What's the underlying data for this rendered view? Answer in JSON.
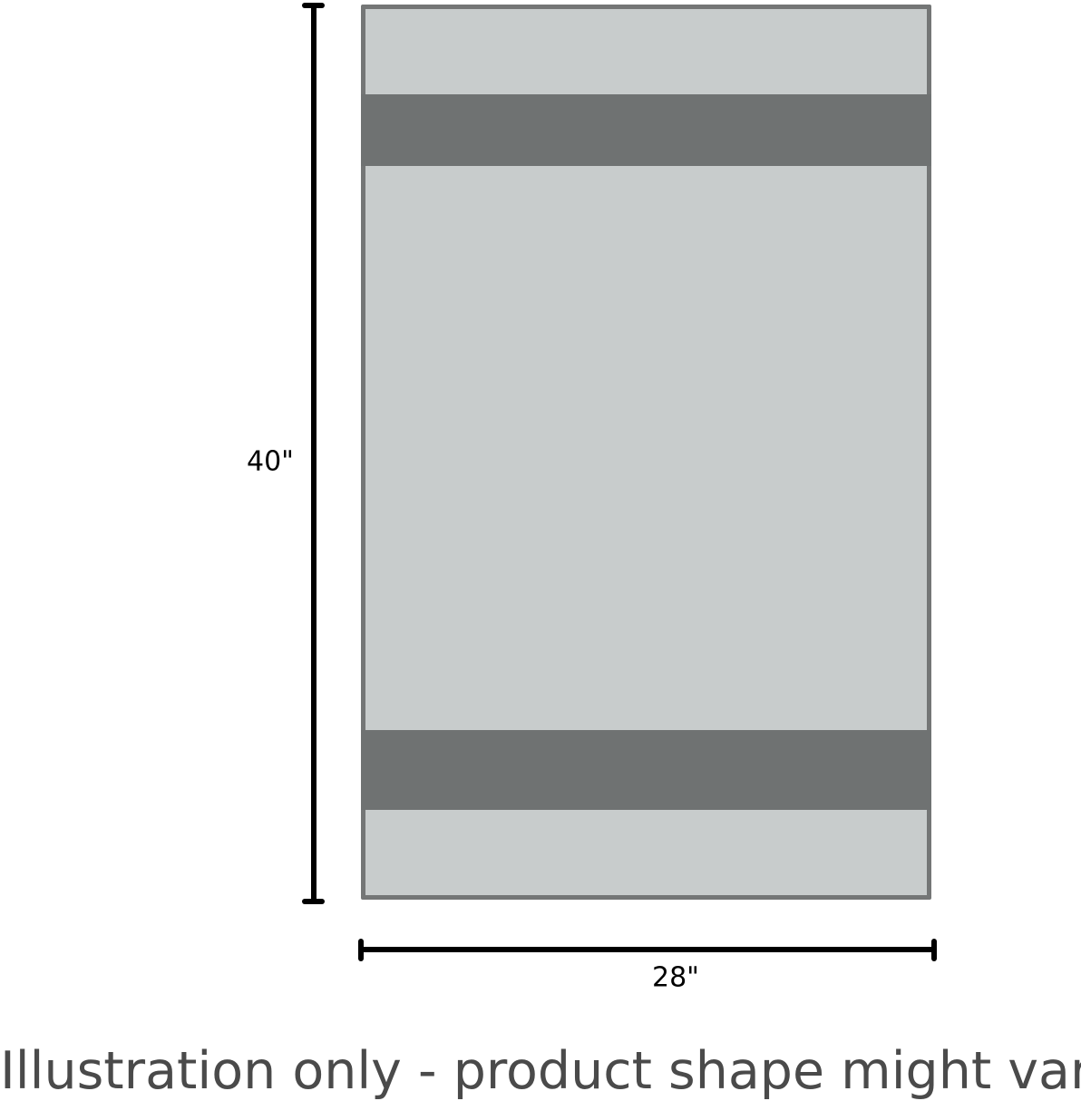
{
  "dimensions": {
    "height_label": "40\"",
    "width_label": "28\""
  },
  "colors": {
    "towel_fill": "#c8cccc",
    "band": "#6f7272",
    "border": "#747676",
    "dimension_lines": "#000000"
  },
  "caption": "Illustration only - product shape might vary."
}
